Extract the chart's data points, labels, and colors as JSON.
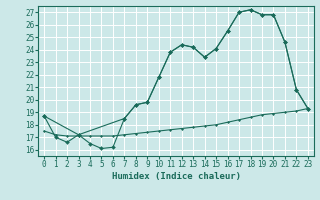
{
  "xlabel": "Humidex (Indice chaleur)",
  "background_color": "#cce8e8",
  "grid_color": "#ffffff",
  "line_color": "#1a6b5a",
  "xlim": [
    -0.5,
    23.5
  ],
  "ylim": [
    15.5,
    27.5
  ],
  "xticks": [
    0,
    1,
    2,
    3,
    4,
    5,
    6,
    7,
    8,
    9,
    10,
    11,
    12,
    13,
    14,
    15,
    16,
    17,
    18,
    19,
    20,
    21,
    22,
    23
  ],
  "yticks": [
    16,
    17,
    18,
    19,
    20,
    21,
    22,
    23,
    24,
    25,
    26,
    27
  ],
  "curve1_x": [
    0,
    1,
    2,
    3,
    4,
    5,
    6,
    7,
    8,
    9,
    10,
    11,
    12,
    13,
    14,
    15,
    16,
    17,
    18,
    19,
    20,
    21,
    22,
    23
  ],
  "curve1_y": [
    18.7,
    17.0,
    16.6,
    17.2,
    16.5,
    16.1,
    16.2,
    18.5,
    19.6,
    19.8,
    21.8,
    23.8,
    24.4,
    24.2,
    23.4,
    24.1,
    25.5,
    27.0,
    27.2,
    26.8,
    26.8,
    24.6,
    20.8,
    19.3
  ],
  "curve2_x": [
    0,
    3,
    7,
    8,
    9,
    10,
    11,
    12,
    13,
    14,
    15,
    16,
    17,
    18,
    19,
    20,
    21,
    22,
    23
  ],
  "curve2_y": [
    18.7,
    17.2,
    18.5,
    19.6,
    19.8,
    21.8,
    23.8,
    24.4,
    24.2,
    23.4,
    24.1,
    25.5,
    27.0,
    27.2,
    26.8,
    26.8,
    24.6,
    20.8,
    19.3
  ],
  "curve3_x": [
    0,
    1,
    2,
    3,
    4,
    5,
    6,
    7,
    8,
    9,
    10,
    11,
    12,
    13,
    14,
    15,
    16,
    17,
    18,
    19,
    20,
    21,
    22,
    23
  ],
  "curve3_y": [
    17.5,
    17.2,
    17.1,
    17.1,
    17.1,
    17.1,
    17.1,
    17.2,
    17.3,
    17.4,
    17.5,
    17.6,
    17.7,
    17.8,
    17.9,
    18.0,
    18.2,
    18.4,
    18.6,
    18.8,
    18.9,
    19.0,
    19.1,
    19.3
  ]
}
